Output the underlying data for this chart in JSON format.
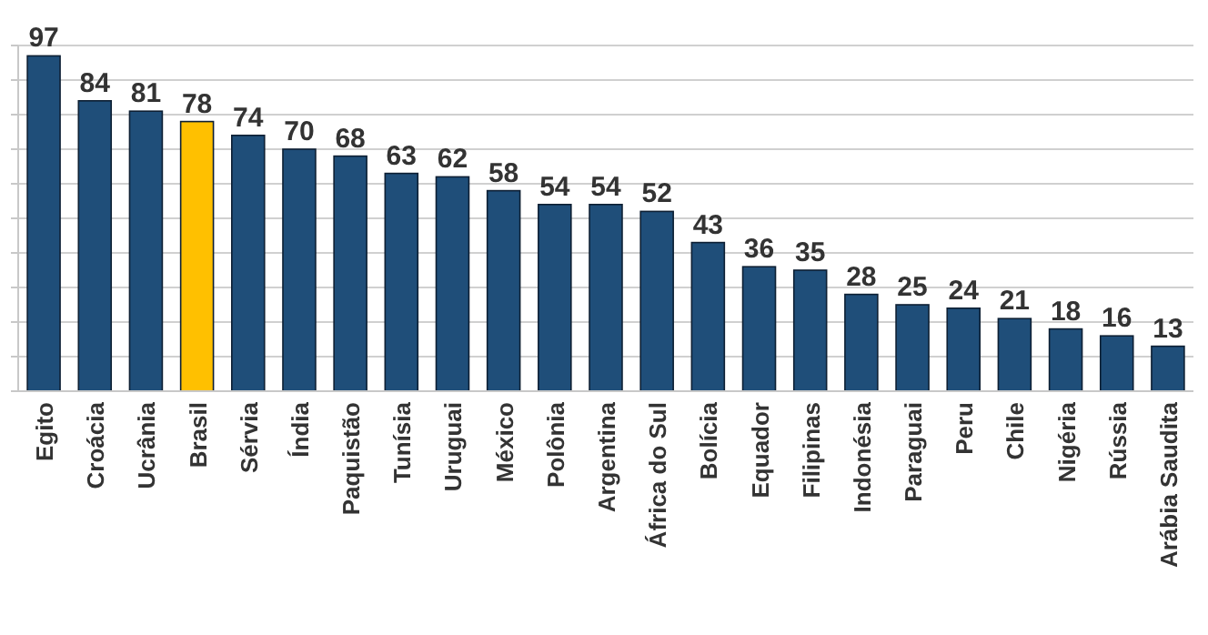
{
  "chart_data": {
    "type": "bar",
    "categories": [
      "Egito",
      "Croácia",
      "Ucrânia",
      "Brasil",
      "Sérvia",
      "Índia",
      "Paquistão",
      "Tunísia",
      "Uruguai",
      "México",
      "Polônia",
      "Argentina",
      "África do Sul",
      "Bolícia",
      "Equador",
      "Filipinas",
      "Indonésia",
      "Paraguai",
      "Peru",
      "Chile",
      "Nigéria",
      "Rússia",
      "Arábia Saudita"
    ],
    "values": [
      97,
      84,
      81,
      78,
      74,
      70,
      68,
      63,
      62,
      58,
      54,
      54,
      52,
      43,
      36,
      35,
      28,
      25,
      24,
      21,
      18,
      16,
      13
    ],
    "colors": [
      "#1f4e79",
      "#1f4e79",
      "#1f4e79",
      "#ffc000",
      "#1f4e79",
      "#1f4e79",
      "#1f4e79",
      "#1f4e79",
      "#1f4e79",
      "#1f4e79",
      "#1f4e79",
      "#1f4e79",
      "#1f4e79",
      "#1f4e79",
      "#1f4e79",
      "#1f4e79",
      "#1f4e79",
      "#1f4e79",
      "#1f4e79",
      "#1f4e79",
      "#1f4e79",
      "#1f4e79",
      "#1f4e79"
    ],
    "ylim": [
      0,
      100
    ],
    "yticks": [
      {
        "value": 0,
        "label": null
      },
      {
        "value": 10,
        "label": null
      },
      {
        "value": 20,
        "label": null
      },
      {
        "value": 30,
        "label": null
      },
      {
        "value": 40,
        "label": null
      },
      {
        "value": 50,
        "label": null
      },
      {
        "value": 60,
        "label": null
      },
      {
        "value": 70,
        "label": null
      },
      {
        "value": 80,
        "label": null
      },
      {
        "value": 90,
        "label": null
      },
      {
        "value": 100,
        "label": null
      }
    ],
    "tick_labels": "x",
    "grid": "y",
    "data_labels": true
  }
}
